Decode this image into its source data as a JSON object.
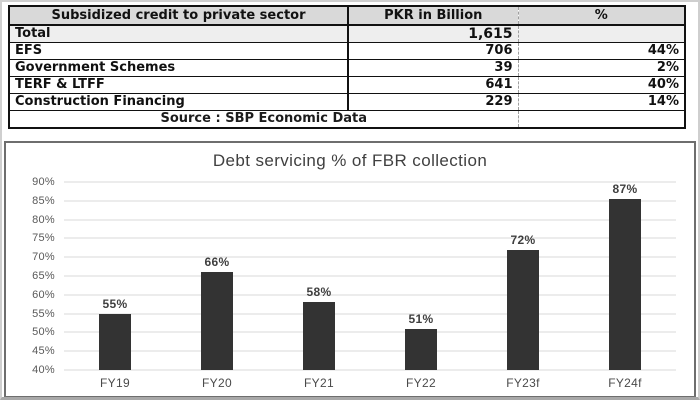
{
  "table": {
    "headers": [
      "Subsidized credit to private sector",
      "PKR in Billion",
      "%"
    ],
    "total": {
      "label": "Total",
      "value": "1,615",
      "pct": ""
    },
    "rows": [
      {
        "label": "EFS",
        "value": "706",
        "pct": "44%"
      },
      {
        "label": "Government Schemes",
        "value": "39",
        "pct": "2%"
      },
      {
        "label": "TERF & LTFF",
        "value": "641",
        "pct": "40%"
      },
      {
        "label": "Construction Financing",
        "value": "229",
        "pct": "14%"
      }
    ],
    "source": "Source : SBP Economic Data"
  },
  "chart_data": {
    "type": "bar",
    "title": "Debt servicing % of FBR collection",
    "categories": [
      "FY19",
      "FY20",
      "FY21",
      "FY22",
      "FY23f",
      "FY24f"
    ],
    "values": [
      55,
      66,
      58,
      51,
      72,
      87
    ],
    "data_labels": [
      "55%",
      "66%",
      "58%",
      "51%",
      "72%",
      "87%"
    ],
    "xlabel": "",
    "ylabel": "",
    "ylim": [
      40,
      90
    ],
    "ytick_step": 5,
    "ytick_labels": [
      "40%",
      "45%",
      "50%",
      "55%",
      "60%",
      "65%",
      "70%",
      "75%",
      "80%",
      "85%",
      "90%"
    ],
    "grid": true,
    "legend": "none",
    "bar_color": "#333333",
    "gridline_color": "#d9d9d9"
  },
  "colors": {
    "table_header_bg": "#d9d9d9",
    "total_row_bg": "#eeeeee",
    "table_border": "#111111",
    "dashed_divider": "#9e9e9e",
    "chart_border": "#6e6e6e",
    "title_text": "#404040",
    "axis_text": "#595959",
    "bar_fill": "#333333",
    "gridline": "#d9d9d9"
  }
}
